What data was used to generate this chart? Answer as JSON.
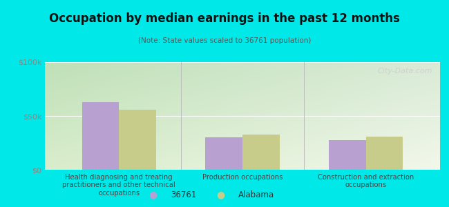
{
  "title": "Occupation by median earnings in the past 12 months",
  "subtitle": "(Note: State values scaled to 36761 population)",
  "categories": [
    "Health diagnosing and treating\npractitioners and other technical\noccupations",
    "Production occupations",
    "Construction and extraction\noccupations"
  ],
  "values_36761": [
    63000,
    30000,
    27500
  ],
  "values_alabama": [
    56000,
    33000,
    30500
  ],
  "color_36761": "#b8a0d0",
  "color_alabama": "#c8cc8a",
  "background_outer": "#00e8e8",
  "ylim": [
    0,
    100000
  ],
  "yticks": [
    0,
    50000,
    100000
  ],
  "ytick_labels": [
    "$0",
    "$50k",
    "$100k"
  ],
  "legend_labels": [
    "36761",
    "Alabama"
  ],
  "watermark": "City-Data.com",
  "bar_width": 0.3
}
